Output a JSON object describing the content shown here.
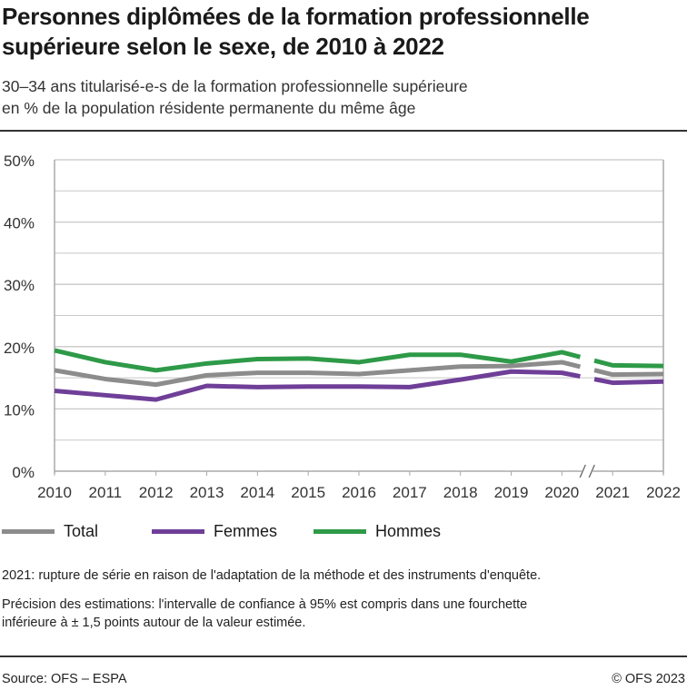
{
  "title": "Personnes diplômées de la formation professionnelle supérieure selon le sexe, de 2010 à 2022",
  "subtitle_line1": "30–34 ans titularisé-e-s de la formation professionnelle supérieure",
  "subtitle_line2": "en % de la population résidente permanente du même âge",
  "chart_data": {
    "type": "line",
    "x": [
      "2010",
      "2011",
      "2012",
      "2013",
      "2014",
      "2015",
      "2016",
      "2017",
      "2018",
      "2019",
      "2020",
      "2021",
      "2022"
    ],
    "yticks": [
      "0%",
      "10%",
      "20%",
      "30%",
      "40%",
      "50%"
    ],
    "ylim": [
      0,
      50
    ],
    "grid": true,
    "series_break": "between 2020 and 2021",
    "legend_position": "bottom",
    "series": [
      {
        "name": "Total",
        "color": "#8c8c8c",
        "values": [
          16.2,
          14.8,
          13.9,
          15.4,
          15.8,
          15.8,
          15.6,
          16.2,
          16.8,
          16.9,
          17.5,
          15.5,
          15.6
        ]
      },
      {
        "name": "Femmes",
        "color": "#6f3f98",
        "values": [
          12.9,
          12.2,
          11.5,
          13.7,
          13.5,
          13.6,
          13.6,
          13.5,
          14.7,
          16.0,
          15.8,
          14.2,
          14.4
        ]
      },
      {
        "name": "Hommes",
        "color": "#2e9a48",
        "values": [
          19.4,
          17.5,
          16.2,
          17.3,
          18.0,
          18.1,
          17.5,
          18.7,
          18.7,
          17.6,
          19.1,
          17.0,
          16.9
        ]
      }
    ]
  },
  "notes": {
    "n1": "2021: rupture de série en raison de l'adaptation de la méthode et des instruments d'enquête.",
    "n2a": "Précision des estimations: l'intervalle de confiance à 95% est compris dans une fourchette",
    "n2b": "inférieure à ± 1,5 points autour de la valeur estimée."
  },
  "footer": {
    "source": "Source: OFS – ESPA",
    "copyright": "© OFS 2023"
  }
}
